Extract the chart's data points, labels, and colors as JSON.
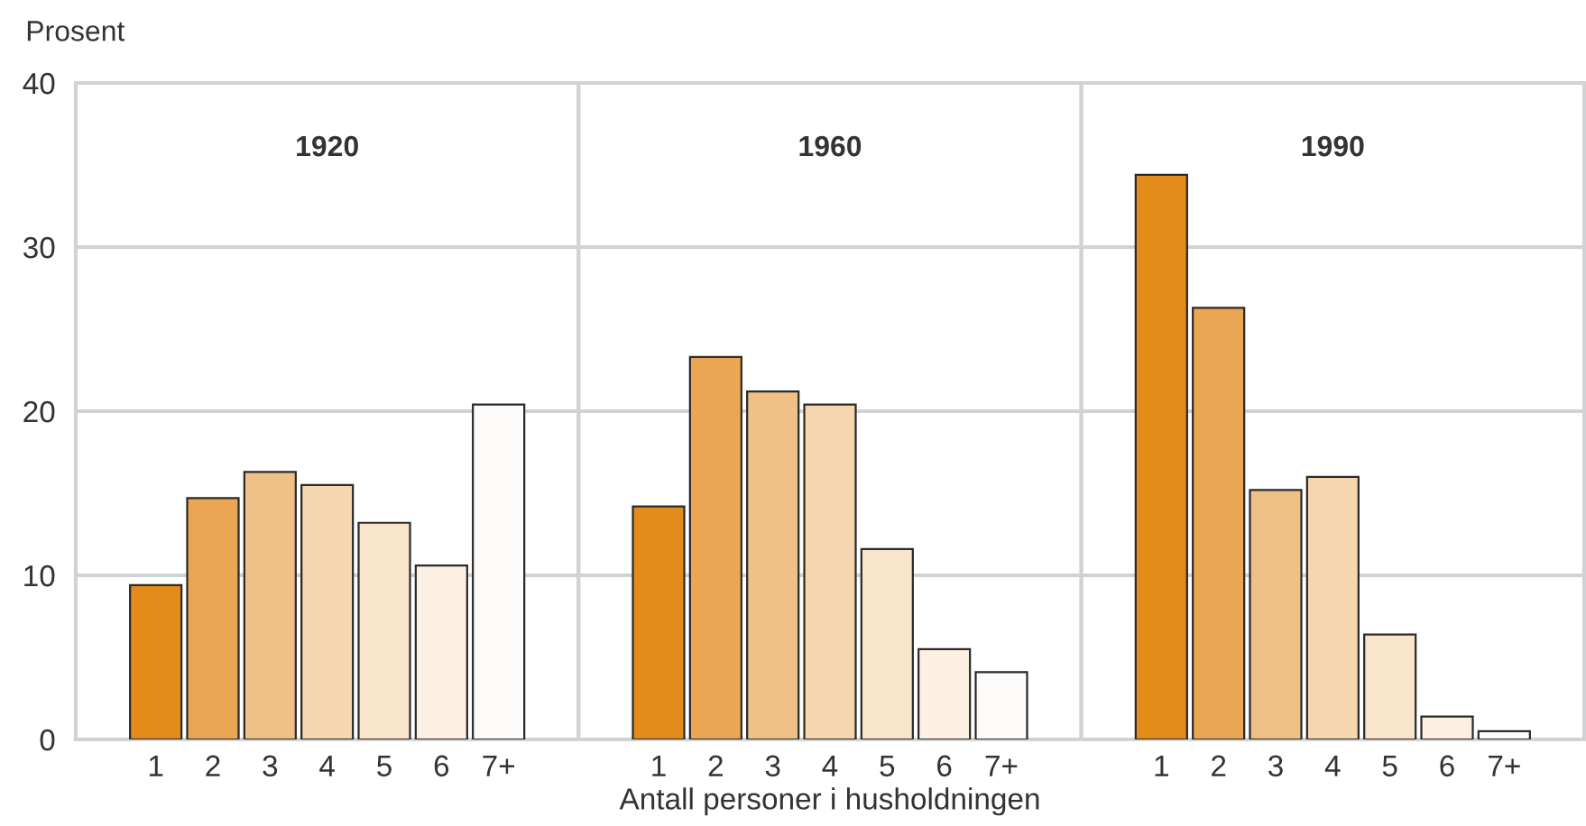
{
  "chart_data": [
    {
      "type": "bar",
      "title": "1920",
      "ylabel": "Prosent",
      "categories": [
        "1",
        "2",
        "3",
        "4",
        "5",
        "6",
        "7+"
      ],
      "values": [
        9.4,
        14.7,
        16.3,
        15.5,
        13.2,
        10.6,
        20.4
      ],
      "colors": [
        "#e38b1b",
        "#eba654",
        "#f0c186",
        "#f5d6ae",
        "#f9e4cc",
        "#fcf0e3",
        "#fefcfa"
      ],
      "ylim": [
        0,
        40
      ],
      "yticks": [
        0,
        10,
        20,
        30,
        40
      ],
      "grid": "y"
    },
    {
      "type": "bar",
      "title": "1960",
      "xlabel": "Antall personer i husholdningen",
      "categories": [
        "1",
        "2",
        "3",
        "4",
        "5",
        "6",
        "7+"
      ],
      "values": [
        14.2,
        23.3,
        21.2,
        20.4,
        11.6,
        5.5,
        4.1
      ],
      "colors": [
        "#e38b1b",
        "#eba654",
        "#f0c186",
        "#f5d6ae",
        "#f9e4cc",
        "#fcf0e3",
        "#fefcfa"
      ],
      "ylim": [
        0,
        40
      ],
      "yticks": [
        0,
        10,
        20,
        30,
        40
      ],
      "grid": "y",
      "tick_labels": "x"
    },
    {
      "type": "bar",
      "title": "1990",
      "categories": [
        "1",
        "2",
        "3",
        "4",
        "5",
        "6",
        "7+"
      ],
      "values": [
        34.4,
        26.3,
        15.2,
        16.0,
        6.4,
        1.4,
        0.5
      ],
      "colors": [
        "#e38b1b",
        "#eba654",
        "#f0c186",
        "#f5d6ae",
        "#f9e4cc",
        "#fcf0e3",
        "#fefcfa"
      ],
      "ylim": [
        0,
        40
      ],
      "yticks": [
        0,
        10,
        20,
        30,
        40
      ],
      "grid": "y",
      "tick_labels": "x"
    }
  ]
}
